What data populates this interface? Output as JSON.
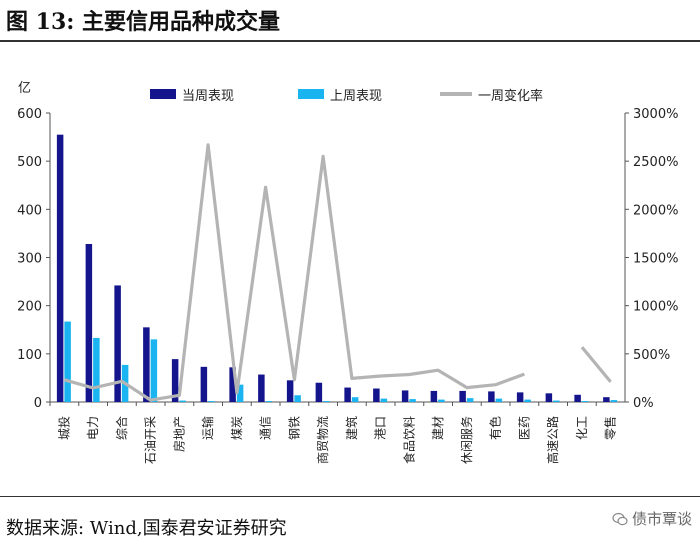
{
  "figure": {
    "title": "图 13:  主要信用品种成交量",
    "source": "数据来源:  Wind,国泰君安证券研究",
    "watermark": "债市覃谈"
  },
  "colors": {
    "current": "#14148c",
    "previous": "#1ab4f0",
    "rate": "#b4b4b4"
  },
  "chart_data": {
    "type": "bar",
    "unit_label": "亿",
    "categories": [
      "城投",
      "电力",
      "综合",
      "石油开采",
      "房地产",
      "运输",
      "煤炭",
      "通信",
      "钢铁",
      "商贸物流",
      "建筑",
      "港口",
      "食品饮料",
      "建材",
      "休闲服务",
      "有色",
      "医药",
      "高速公路",
      "化工",
      "零售"
    ],
    "series": [
      {
        "name": "当周表现",
        "axis": "left",
        "type": "bar",
        "values": [
          555,
          328,
          242,
          155,
          89,
          73,
          72,
          57,
          45,
          40,
          30,
          28,
          24,
          23,
          23,
          22,
          20,
          18,
          15,
          10
        ]
      },
      {
        "name": "上周表现",
        "axis": "left",
        "type": "bar",
        "values": [
          167,
          133,
          77,
          130,
          3,
          2,
          36,
          2,
          14,
          2,
          10,
          7,
          6,
          5,
          8,
          7,
          5,
          3,
          2,
          4
        ]
      },
      {
        "name": "一周变化率",
        "axis": "right",
        "type": "line",
        "unit": "%",
        "values": [
          230,
          145,
          215,
          20,
          70,
          2670,
          95,
          2230,
          230,
          2550,
          245,
          270,
          285,
          330,
          150,
          180,
          290,
          null,
          570,
          210
        ]
      }
    ],
    "y_left": {
      "min": 0,
      "max": 600,
      "ticks": [
        0,
        100,
        200,
        300,
        400,
        500,
        600
      ]
    },
    "y_right": {
      "min": 0,
      "max": 3000,
      "ticks": [
        "0%",
        "500%",
        "1000%",
        "1500%",
        "2000%",
        "2500%",
        "3000%"
      ]
    },
    "legend_position": "top",
    "grid": false
  }
}
